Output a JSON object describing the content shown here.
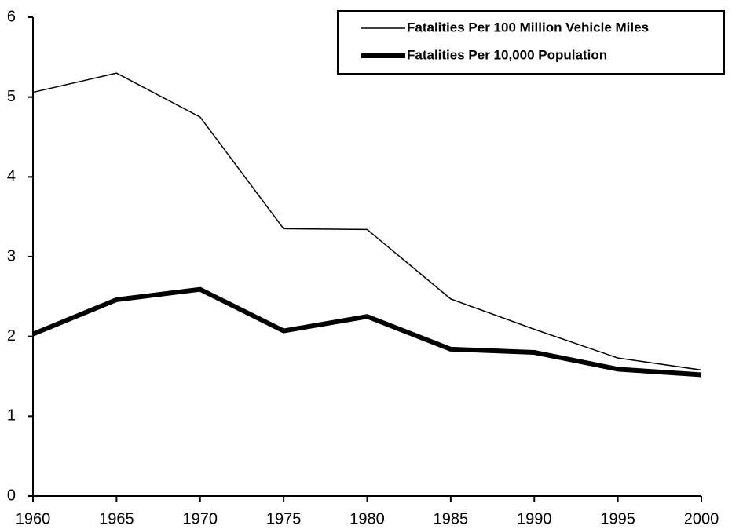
{
  "chart_data": {
    "type": "line",
    "x": [
      1960,
      1965,
      1970,
      1975,
      1980,
      1985,
      1990,
      1995,
      2000
    ],
    "series": [
      {
        "name": "Fatalities Per 100 Million Vehicle Miles",
        "color": "#000000",
        "linewidth": 1.5,
        "values": [
          5.06,
          5.3,
          4.75,
          3.35,
          3.34,
          2.47,
          2.09,
          1.73,
          1.58
        ]
      },
      {
        "name": "Fatalities Per 10,000 Population",
        "color": "#000000",
        "linewidth": 6,
        "values": [
          2.03,
          2.46,
          2.59,
          2.07,
          2.25,
          1.84,
          1.8,
          1.59,
          1.52
        ]
      }
    ],
    "xlim": [
      1960,
      2000
    ],
    "xticks": [
      1960,
      1965,
      1970,
      1975,
      1980,
      1985,
      1990,
      1995,
      2000
    ],
    "ylim": [
      0,
      6
    ],
    "yticks": [
      0,
      1,
      2,
      3,
      4,
      5,
      6
    ],
    "grid": false,
    "legend": "upper right"
  }
}
